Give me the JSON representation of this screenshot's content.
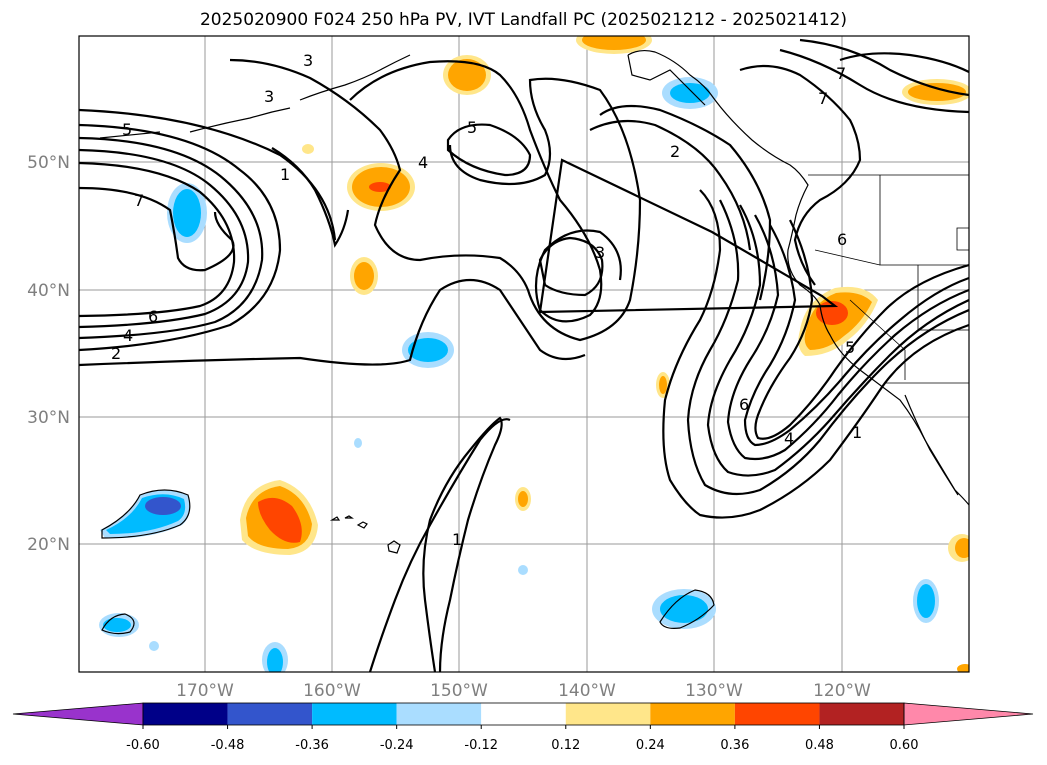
{
  "title": "2025020900 F024 250 hPa PV, IVT Landfall PC (2025021212 - 2025021412)",
  "lat_labels": [
    "50°N",
    "40°N",
    "30°N",
    "20°N"
  ],
  "lon_labels": [
    "170°W",
    "160°W",
    "150°W",
    "140°W",
    "130°W",
    "120°W"
  ],
  "colorbar": {
    "labels": [
      "-0.60",
      "-0.48",
      "-0.36",
      "-0.24",
      "-0.12",
      "0.12",
      "0.24",
      "0.36",
      "0.48",
      "0.60"
    ],
    "colors": [
      "#9933cc",
      "#000088",
      "#3355cc",
      "#00bbff",
      "#aaddff",
      "#ffffff",
      "#ffe68a",
      "#ffa500",
      "#ff4500",
      "#b22222",
      "#ff88aa",
      "#ff88aa"
    ]
  },
  "contour_labels": [
    "3",
    "3",
    "5",
    "7",
    "6",
    "4",
    "2",
    "1",
    "4",
    "5",
    "2",
    "3",
    "7",
    "7",
    "6",
    "5",
    "1",
    "4",
    "6",
    "1"
  ],
  "colors": {
    "grid": "#9a9a9a",
    "tick_text": "#7f7f7f"
  }
}
